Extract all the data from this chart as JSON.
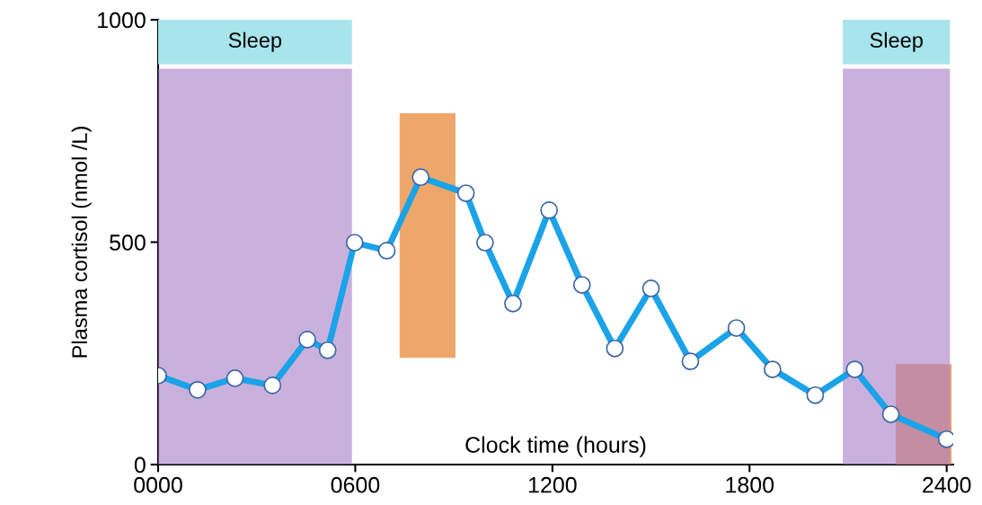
{
  "chart_data": {
    "type": "line",
    "xlabel": "Clock time (hours)",
    "ylabel": "Plasma cortisol (nmol /L)",
    "x": [
      0,
      120,
      234,
      348,
      454,
      516,
      598,
      696,
      799,
      937,
      995,
      1080,
      1190,
      1290,
      1390,
      1500,
      1620,
      1760,
      1870,
      2000,
      2120,
      2230,
      2400
    ],
    "series": [
      {
        "type": "bar",
        "x": [
          820,
          2330
        ],
        "base": [
          240,
          0
        ],
        "values": [
          550,
          226
        ],
        "color": "#e8893a"
      },
      {
        "color": "#1aa3e8",
        "values": [
          200,
          168,
          194,
          178,
          281,
          257,
          499,
          481,
          646,
          610,
          499,
          362,
          572,
          404,
          261,
          396,
          232,
          307,
          214,
          156,
          214,
          113,
          57
        ]
      }
    ],
    "xlim": [
      0,
      2420
    ],
    "ylim": [
      0,
      1000
    ],
    "xticks": [
      {
        "value": 0,
        "label": "0000"
      },
      {
        "value": 600,
        "label": "0600"
      },
      {
        "value": 1200,
        "label": "1200"
      },
      {
        "value": 1800,
        "label": "1800"
      },
      {
        "value": 2400,
        "label": "2400"
      }
    ],
    "yticks": [
      0,
      500,
      1000
    ],
    "bands": [
      {
        "axis": "x",
        "from": 0,
        "to": 590,
        "label": "Sleep",
        "color": "#a77cc6"
      },
      {
        "axis": "x",
        "from": 2084,
        "to": 2410,
        "label": "Sleep",
        "color": "#a77cc6"
      }
    ],
    "grid": false,
    "marker": "circle",
    "line_style": "solid",
    "legend": false
  }
}
